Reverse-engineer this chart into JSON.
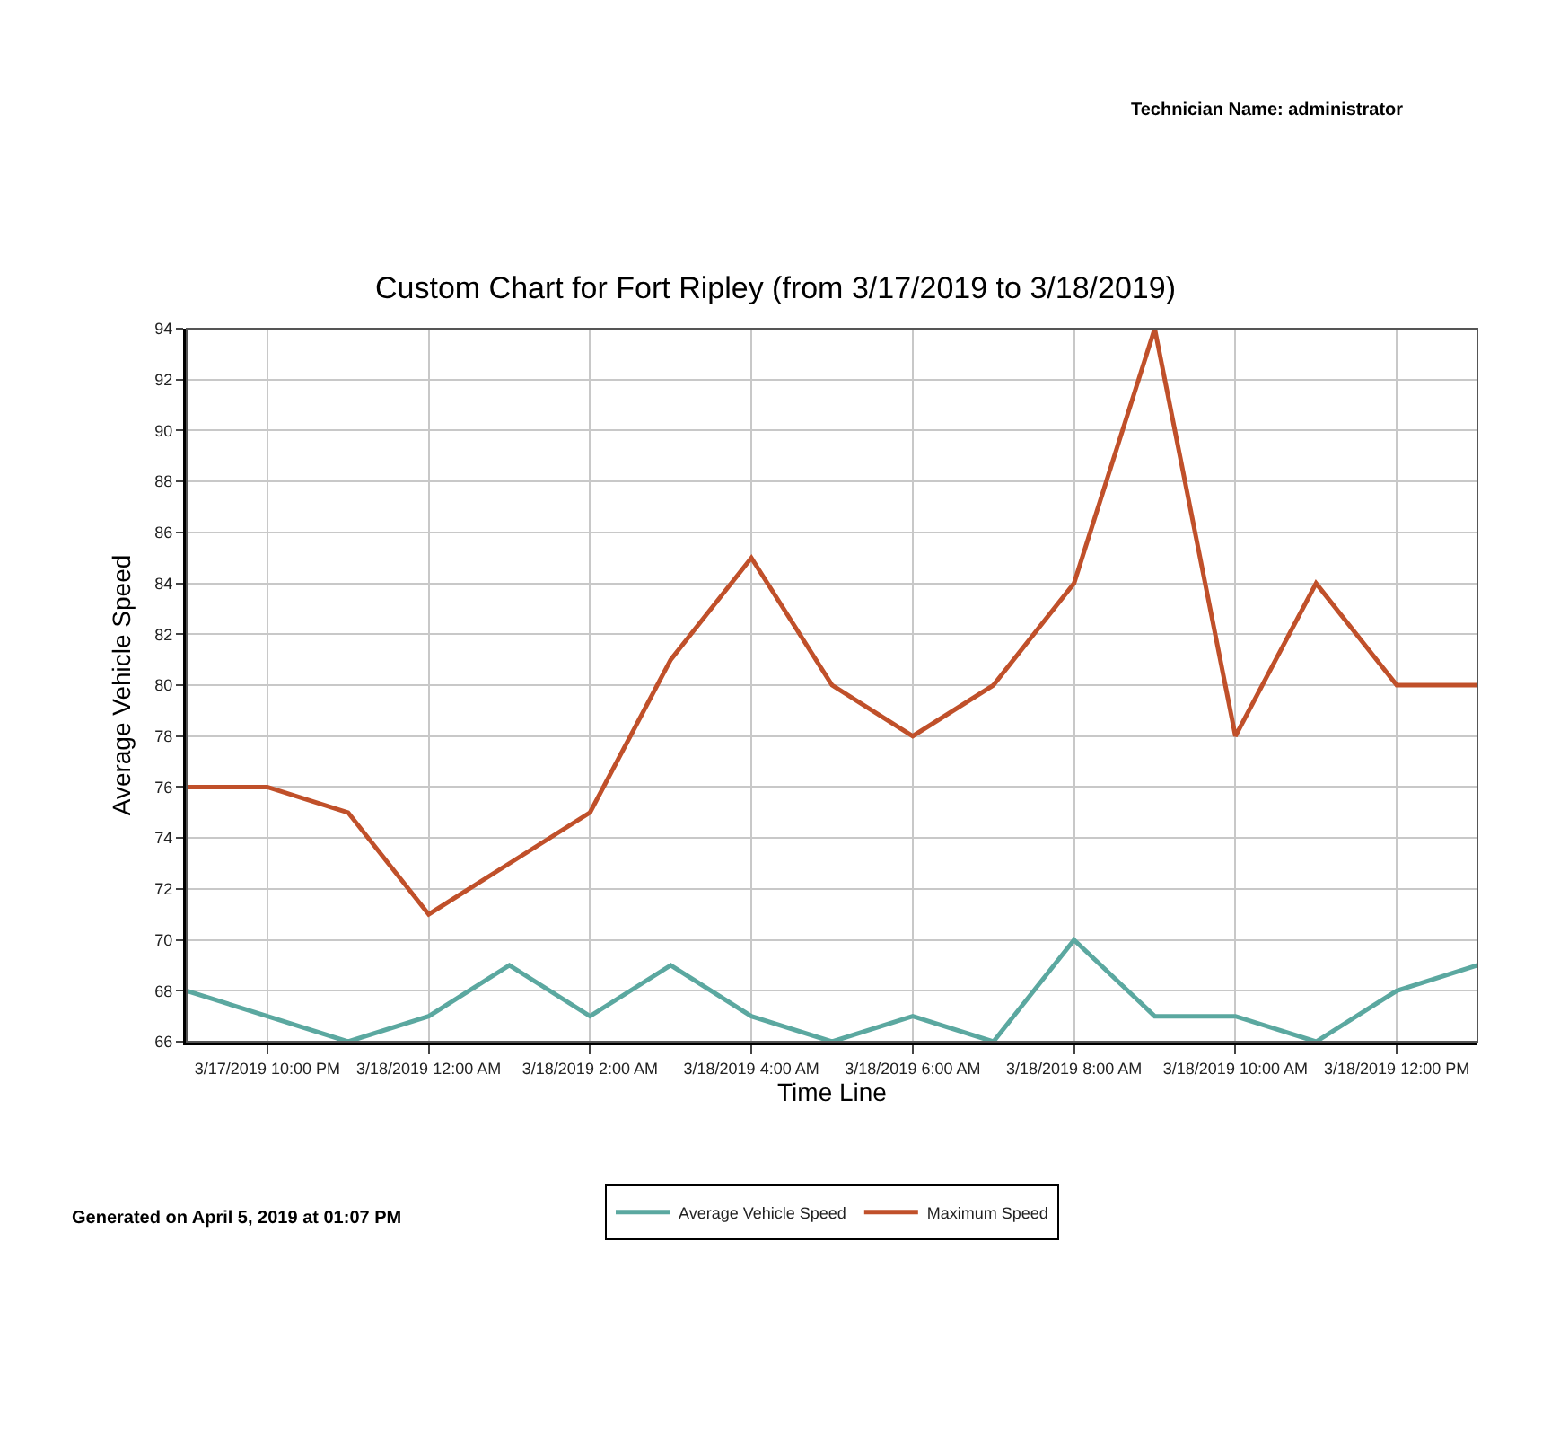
{
  "chart_data": {
    "type": "line",
    "title": "Custom Chart for Fort Ripley (from 3/17/2019 to 3/18/2019)",
    "xlabel": "Time Line",
    "ylabel": "Average Vehicle Speed",
    "annotations": [
      "Technician Name: administrator",
      "Generated on April 5, 2019 at 01:07 PM"
    ],
    "x": [
      "2019-03-17T21:00",
      "2019-03-17T22:00",
      "2019-03-17T23:00",
      "2019-03-18T00:00",
      "2019-03-18T01:00",
      "2019-03-18T02:00",
      "2019-03-18T03:00",
      "2019-03-18T04:00",
      "2019-03-18T05:00",
      "2019-03-18T06:00",
      "2019-03-18T07:00",
      "2019-03-18T08:00",
      "2019-03-18T09:00",
      "2019-03-18T10:00",
      "2019-03-18T11:00",
      "2019-03-18T12:00",
      "2019-03-18T13:00"
    ],
    "series": [
      {
        "name": "Average Vehicle Speed",
        "color": "#5ba8a0",
        "values": [
          68,
          67,
          66,
          67,
          69,
          67,
          69,
          67,
          66,
          67,
          66,
          70,
          67,
          67,
          66,
          68,
          69
        ]
      },
      {
        "name": "Maximum Speed",
        "color": "#c0502a",
        "values": [
          76,
          76,
          75,
          71,
          73,
          75,
          81,
          85,
          80,
          78,
          80,
          84,
          94,
          78,
          84,
          80,
          80
        ]
      }
    ],
    "xlim": [
      "2019-03-17T21:00",
      "2019-03-18T13:00"
    ],
    "xticks": [
      {
        "value": "2019-03-17T22:00",
        "label": "3/17/2019 10:00 PM"
      },
      {
        "value": "2019-03-18T00:00",
        "label": "3/18/2019 12:00 AM"
      },
      {
        "value": "2019-03-18T02:00",
        "label": "3/18/2019 2:00 AM"
      },
      {
        "value": "2019-03-18T04:00",
        "label": "3/18/2019 4:00 AM"
      },
      {
        "value": "2019-03-18T06:00",
        "label": "3/18/2019 6:00 AM"
      },
      {
        "value": "2019-03-18T08:00",
        "label": "3/18/2019 8:00 AM"
      },
      {
        "value": "2019-03-18T10:00",
        "label": "3/18/2019 10:00 AM"
      },
      {
        "value": "2019-03-18T12:00",
        "label": "3/18/2019 12:00 PM"
      }
    ],
    "ylim": [
      66,
      94
    ],
    "yticks": [
      66,
      68,
      70,
      72,
      74,
      76,
      78,
      80,
      82,
      84,
      86,
      88,
      90,
      92,
      94
    ],
    "grid": true,
    "legend": "bottom",
    "marker": "none",
    "line_style": "solid"
  }
}
